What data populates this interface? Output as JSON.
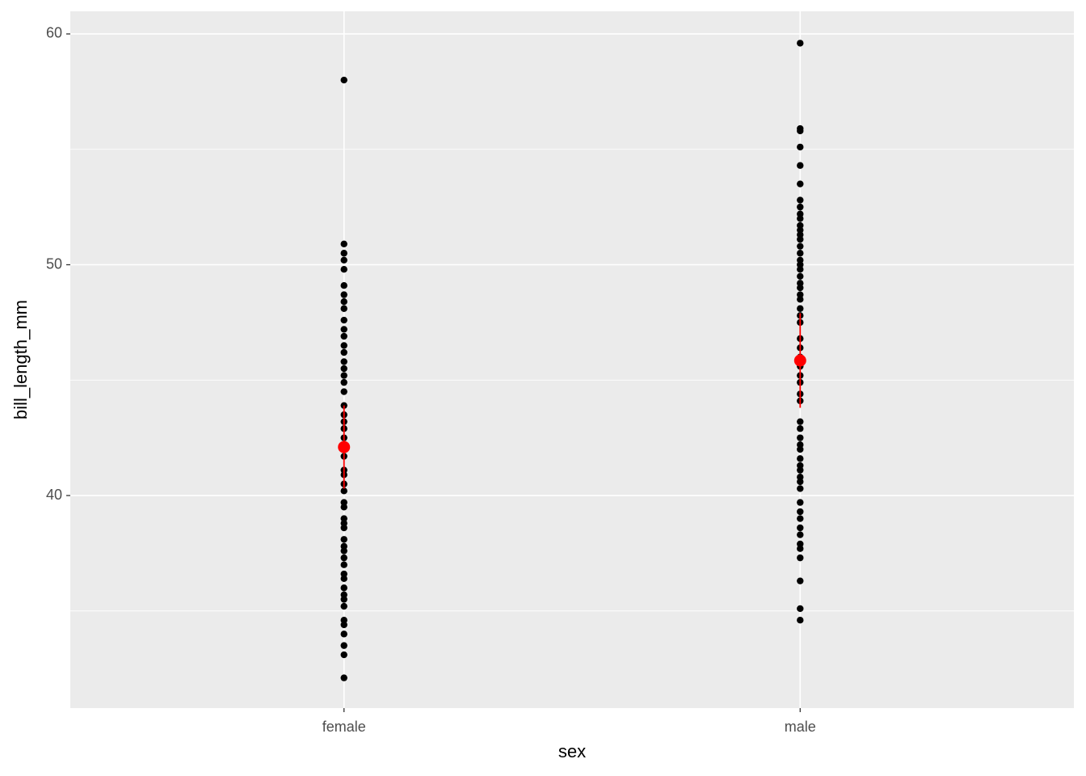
{
  "chart_data": {
    "type": "strip",
    "x_label": "sex",
    "y_label": "bill_length_mm",
    "categories": [
      "female",
      "male"
    ],
    "points": [
      [
        58.0,
        50.9,
        50.5,
        50.2,
        49.8,
        49.1,
        48.7,
        48.4,
        48.1,
        47.6,
        47.2,
        46.9,
        46.5,
        46.2,
        45.8,
        45.5,
        45.2,
        44.9,
        44.5,
        43.9,
        43.5,
        43.2,
        42.9,
        42.5,
        42.2,
        42.0,
        41.7,
        41.1,
        40.9,
        40.5,
        40.2,
        39.7,
        39.5,
        39.0,
        38.8,
        38.6,
        38.1,
        37.8,
        37.6,
        37.3,
        37.0,
        36.6,
        36.4,
        36.0,
        35.7,
        35.5,
        35.2,
        34.6,
        34.4,
        34.0,
        33.5,
        33.1,
        32.1
      ],
      [
        59.6,
        55.9,
        55.8,
        55.1,
        54.3,
        53.5,
        52.8,
        52.5,
        52.2,
        52.0,
        51.7,
        51.5,
        51.3,
        51.1,
        50.8,
        50.5,
        50.2,
        50.0,
        49.8,
        49.5,
        49.2,
        49.0,
        48.7,
        48.5,
        48.1,
        47.8,
        47.5,
        46.8,
        46.4,
        46.0,
        45.6,
        45.2,
        44.9,
        44.4,
        44.1,
        43.2,
        42.9,
        42.5,
        42.2,
        42.0,
        41.6,
        41.3,
        41.1,
        40.8,
        40.6,
        40.3,
        39.7,
        39.3,
        39.0,
        38.6,
        38.3,
        37.9,
        37.7,
        37.3,
        36.3,
        35.1,
        34.6
      ]
    ],
    "point_color": "#000000",
    "summary": {
      "mean": [
        42.1,
        45.85
      ],
      "lower": [
        40.3,
        43.8
      ],
      "upper": [
        43.9,
        47.9
      ],
      "color": "#ff0000"
    },
    "ylim": [
      30.79,
      60.98
    ],
    "yticks": [
      40,
      50,
      60
    ],
    "minor_yticks": [
      35,
      45,
      55
    ],
    "grid": true
  }
}
